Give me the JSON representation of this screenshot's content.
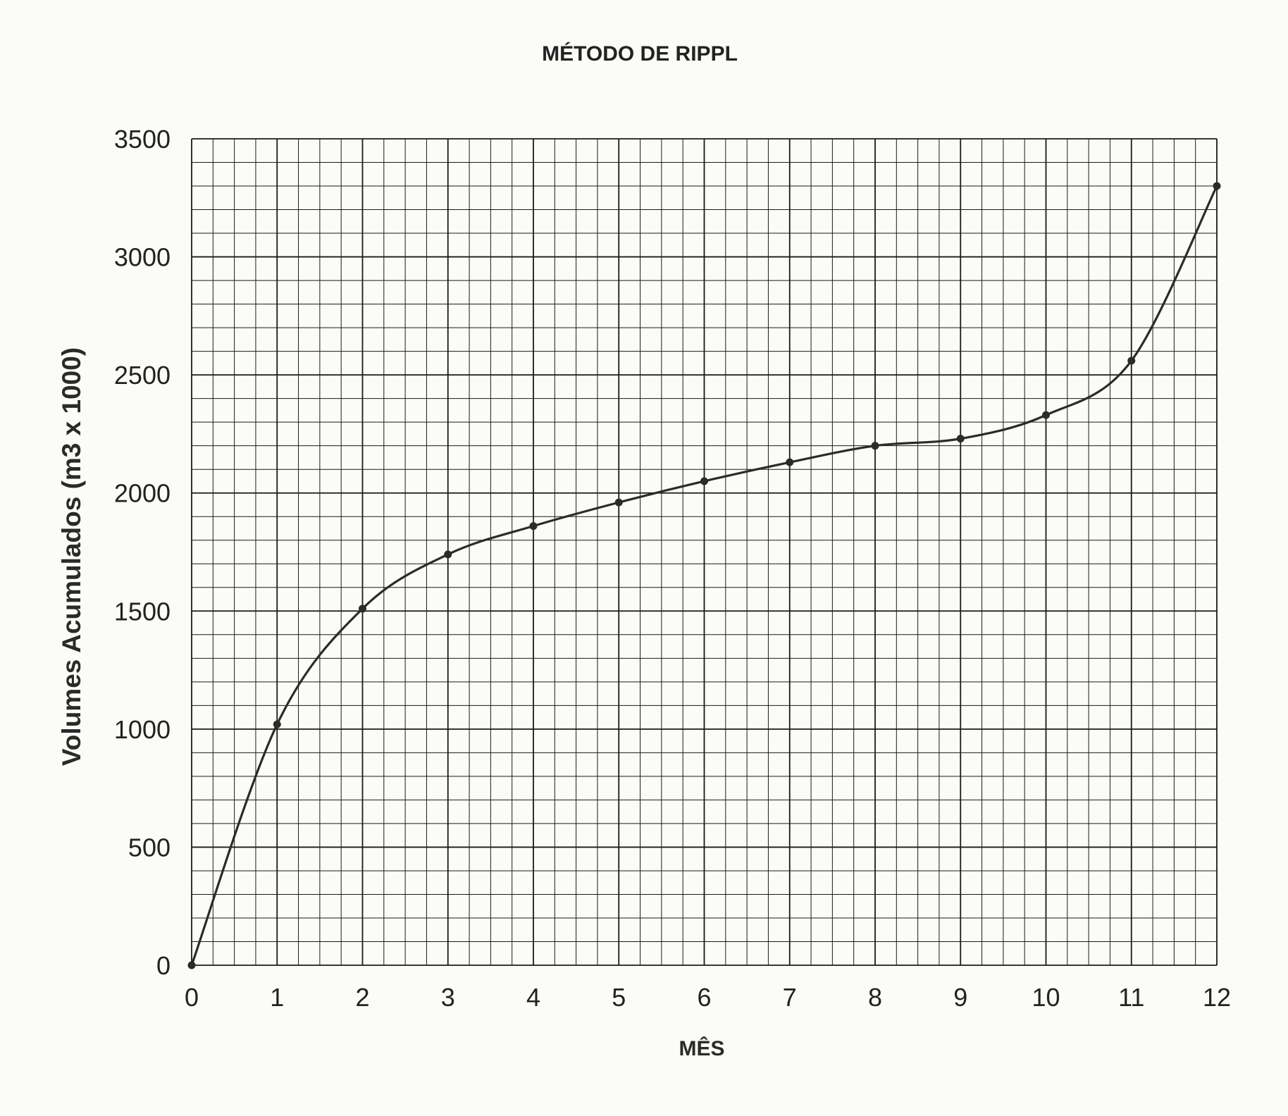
{
  "chart_data": {
    "type": "line",
    "title": "MÉTODO DE RIPPL",
    "xlabel": "MÊS",
    "ylabel": "Volumes Acumulados (m3 x 1000)",
    "xlim": [
      0,
      12
    ],
    "ylim": [
      0,
      3500
    ],
    "xticks": [
      "0",
      "1",
      "2",
      "3",
      "4",
      "5",
      "6",
      "7",
      "8",
      "9",
      "10",
      "11",
      "12"
    ],
    "yticks": [
      "0",
      "500",
      "1000",
      "1500",
      "2000",
      "2500",
      "3000",
      "3500"
    ],
    "grid": true,
    "series": [
      {
        "x": [
          0,
          1,
          2,
          3,
          4,
          5,
          6,
          7,
          8,
          9,
          10,
          11,
          12
        ],
        "y": [
          0,
          1020,
          1510,
          1740,
          1860,
          1960,
          2050,
          2130,
          2200,
          2230,
          2330,
          2560,
          3300
        ]
      }
    ],
    "colors": {
      "line": "#2b2b2b",
      "grid": "#1a1a1a",
      "background": "#fbfbf7"
    }
  }
}
